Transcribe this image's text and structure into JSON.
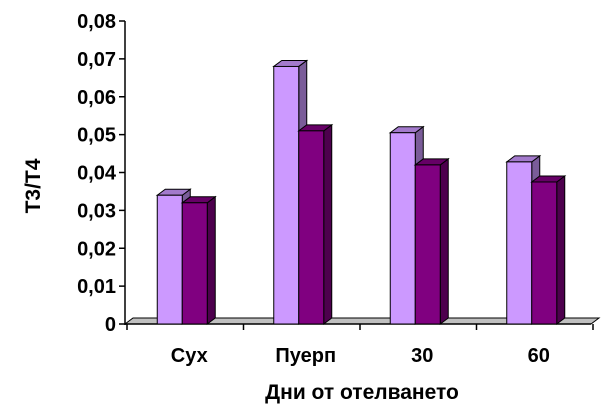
{
  "chart_data": {
    "type": "bar",
    "categories": [
      "Сух",
      "Пуерп",
      "30",
      "60"
    ],
    "series": [
      {
        "values": [
          0.034,
          0.068,
          0.0505,
          0.0428
        ],
        "color": "#cc99ff"
      },
      {
        "values": [
          0.032,
          0.051,
          0.042,
          0.0375
        ],
        "color": "#800080"
      }
    ],
    "xlabel": "Дни от отелването",
    "ylabel": "Т3/Т4",
    "ylim": [
      0,
      0.08
    ],
    "yticks": [
      "0",
      "0,01",
      "0,02",
      "0,03",
      "0,04",
      "0,05",
      "0,06",
      "0,07",
      "0,08"
    ],
    "three_d": true,
    "grid": false,
    "legend": "none"
  }
}
